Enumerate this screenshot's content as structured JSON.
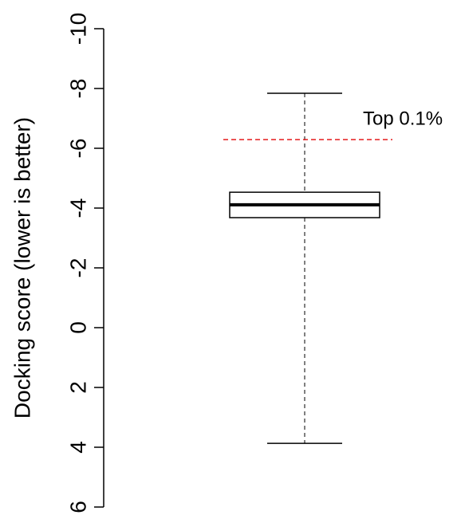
{
  "chart_data": {
    "type": "box",
    "ylabel": "Docking score (lower is better)",
    "ylim": [
      -10,
      6
    ],
    "yticks": [
      -10,
      -8,
      -6,
      -4,
      -2,
      0,
      2,
      4,
      6
    ],
    "invert_y": true,
    "box": {
      "min": -7.84,
      "q1": -4.53,
      "median": -4.11,
      "q3": -3.68,
      "max": 3.87,
      "color": "#000000"
    },
    "reference_line": {
      "value": -6.29,
      "label": "Top 0.1%",
      "color": "#e41a1c"
    }
  }
}
